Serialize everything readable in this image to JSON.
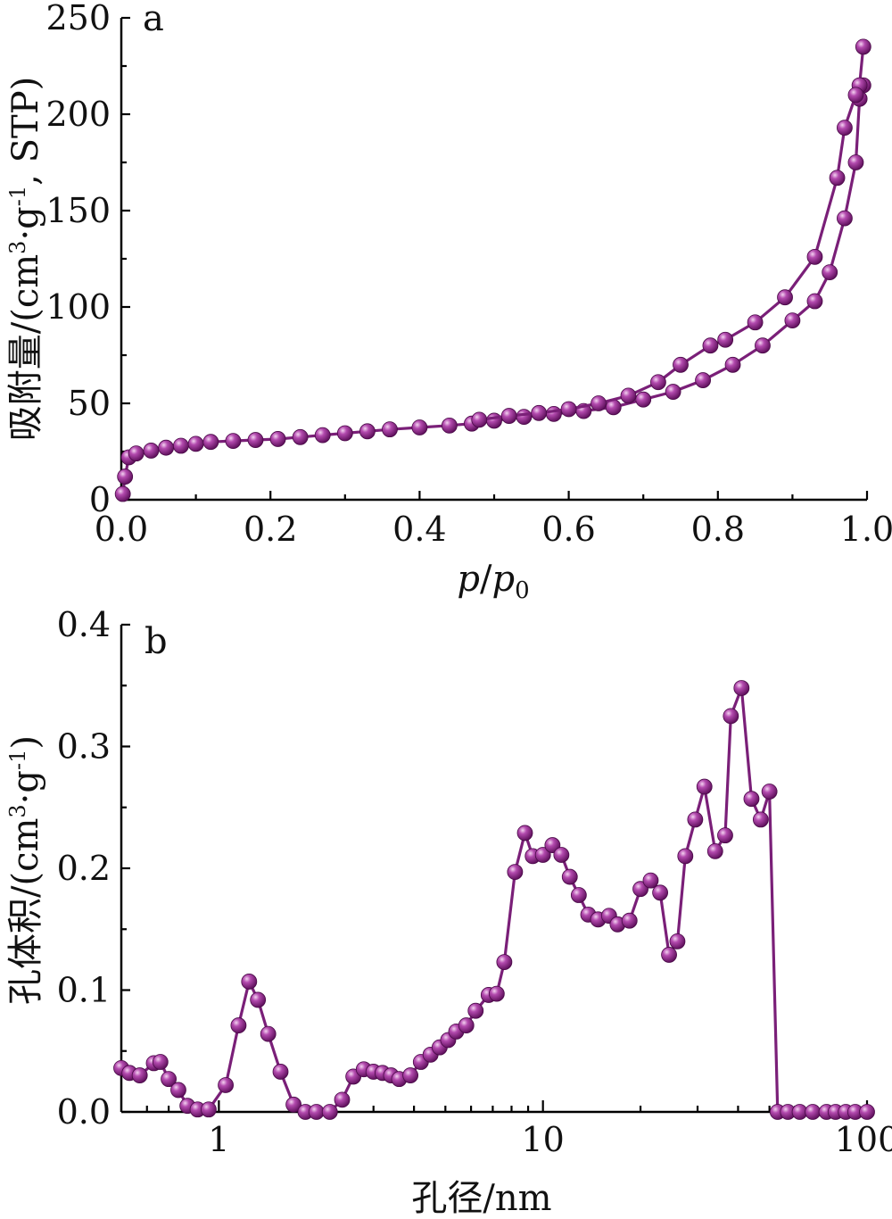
{
  "chart_data": [
    {
      "panel": "a",
      "type": "line",
      "title": "",
      "xlabel": "p/p0",
      "xlabel_italic_parts": [
        "p",
        "/",
        "p",
        "0"
      ],
      "ylabel": "吸附量/(cm3·g-1, STP)",
      "ylabel_parts": [
        "吸附量/(cm",
        "3",
        "·g",
        "-1",
        ", STP)"
      ],
      "xlim": [
        0.0,
        1.0
      ],
      "ylim": [
        0,
        250
      ],
      "xticks": [
        "0.0",
        "0.2",
        "0.4",
        "0.6",
        "0.8",
        "1.0"
      ],
      "yticks": [
        "0",
        "50",
        "100",
        "150",
        "200",
        "250"
      ],
      "grid": false,
      "color": "#7a1f78",
      "series": [
        {
          "x": [
            0.002,
            0.005,
            0.01,
            0.02,
            0.04,
            0.06,
            0.08,
            0.1,
            0.12,
            0.15,
            0.18,
            0.21,
            0.24,
            0.27,
            0.3,
            0.33,
            0.36,
            0.4,
            0.44,
            0.47,
            0.5,
            0.54,
            0.58,
            0.62,
            0.66,
            0.7,
            0.74,
            0.78,
            0.82,
            0.86,
            0.9,
            0.93,
            0.95,
            0.97,
            0.985,
            0.99,
            0.995
          ],
          "y": [
            3,
            12,
            22,
            24,
            25.5,
            27,
            28,
            29,
            30,
            30.5,
            31,
            31.5,
            32.5,
            33.5,
            34.5,
            35.5,
            36.5,
            37.5,
            38.5,
            39.5,
            41,
            43,
            44.5,
            46,
            48,
            52,
            56,
            62,
            70,
            80,
            93,
            103,
            118,
            146,
            175,
            208,
            215
          ]
        },
        {
          "x": [
            0.995,
            0.99,
            0.985,
            0.97,
            0.96,
            0.93,
            0.89,
            0.85,
            0.81,
            0.79,
            0.75,
            0.72,
            0.68,
            0.64,
            0.6,
            0.56,
            0.52,
            0.48
          ],
          "y": [
            235,
            215,
            210,
            193,
            167,
            126,
            105,
            92,
            83,
            80,
            70,
            61,
            54,
            50,
            47,
            45,
            43.5,
            41.5
          ]
        }
      ]
    },
    {
      "panel": "b",
      "type": "line",
      "title": "",
      "xlabel": "孔径/nm",
      "ylabel": "孔体积/(cm3·g-1)",
      "ylabel_parts": [
        "孔体积/(cm",
        "3",
        "·g",
        "-1",
        ")"
      ],
      "xscale": "log",
      "xlim": [
        0.5,
        100
      ],
      "ylim": [
        0.0,
        0.4
      ],
      "xticks": [
        "1",
        "10",
        "100"
      ],
      "yticks": [
        "0.0",
        "0.1",
        "0.2",
        "0.3",
        "0.4"
      ],
      "grid": false,
      "color": "#7a1f78",
      "series": [
        {
          "x": [
            0.5,
            0.53,
            0.57,
            0.63,
            0.66,
            0.7,
            0.75,
            0.8,
            0.86,
            0.93,
            1.05,
            1.15,
            1.24,
            1.32,
            1.42,
            1.55,
            1.7,
            1.85,
            2.0,
            2.2,
            2.4,
            2.6,
            2.8,
            3.0,
            3.2,
            3.4,
            3.6,
            3.9,
            4.2,
            4.5,
            4.8,
            5.1,
            5.4,
            5.8,
            6.2,
            6.8,
            7.2,
            7.6,
            8.2,
            8.8,
            9.3,
            10.0,
            10.7,
            11.4,
            12.1,
            12.9,
            13.8,
            14.8,
            16.0,
            17.0,
            18.5,
            20.0,
            21.5,
            23.0,
            24.5,
            26.0,
            27.5,
            29.5,
            31.5,
            34.0,
            36.5,
            38.0,
            41.0,
            44.0,
            47.0,
            50.0,
            53.0,
            57.0,
            62.0,
            68.0,
            75.0,
            80.0,
            86.0,
            92.0,
            100.0
          ],
          "y": [
            0.036,
            0.032,
            0.03,
            0.04,
            0.041,
            0.027,
            0.018,
            0.005,
            0.002,
            0.002,
            0.022,
            0.071,
            0.107,
            0.092,
            0.064,
            0.033,
            0.006,
            0.0,
            0.0,
            0.0,
            0.01,
            0.029,
            0.035,
            0.033,
            0.032,
            0.03,
            0.027,
            0.03,
            0.041,
            0.047,
            0.053,
            0.059,
            0.066,
            0.071,
            0.083,
            0.096,
            0.097,
            0.123,
            0.197,
            0.229,
            0.21,
            0.211,
            0.219,
            0.211,
            0.193,
            0.178,
            0.162,
            0.158,
            0.161,
            0.154,
            0.157,
            0.183,
            0.19,
            0.18,
            0.129,
            0.14,
            0.21,
            0.24,
            0.267,
            0.214,
            0.227,
            0.325,
            0.348,
            0.257,
            0.24,
            0.263,
            0.0,
            0.0,
            0.0,
            0.0,
            0.0,
            0.0,
            0.0,
            0.0,
            0.0
          ]
        }
      ]
    }
  ]
}
